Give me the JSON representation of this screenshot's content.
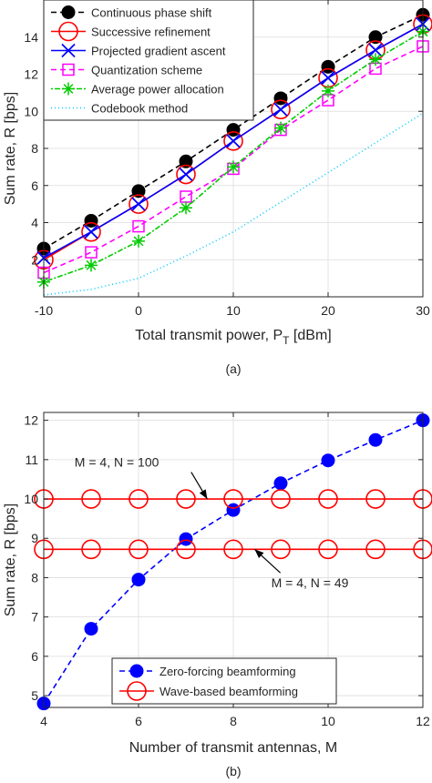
{
  "chart_data": [
    {
      "type": "line",
      "caption": "(a)",
      "xlabel": "Total transmit power, P",
      "xlabel_sub": "T",
      "xlabel_unit": "[dBm]",
      "ylabel": "Sum rate, R [bps]",
      "xlim": [
        -10,
        30
      ],
      "ylim": [
        0,
        16
      ],
      "xticks": [
        -10,
        0,
        10,
        20,
        30
      ],
      "xtick_labels": [
        "-10",
        "0",
        "10",
        "20",
        "30"
      ],
      "yticks": [
        2,
        4,
        6,
        8,
        10,
        12,
        14
      ],
      "ytick_labels": [
        "2",
        "4",
        "6",
        "8",
        "10",
        "12",
        "14"
      ],
      "grid": true,
      "legend_position": "top-left",
      "x": [
        -10,
        -5,
        0,
        5,
        10,
        15,
        20,
        25,
        30
      ],
      "series": [
        {
          "name": "Continuous phase shift",
          "color": "#000000",
          "dash": "6,4",
          "marker": "filled-circle",
          "values": [
            2.6,
            4.1,
            5.7,
            7.3,
            9.0,
            10.7,
            12.4,
            14.0,
            15.2
          ]
        },
        {
          "name": "Successive refinement",
          "color": "#ff0000",
          "dash": "",
          "marker": "open-circle",
          "values": [
            2.0,
            3.5,
            5.0,
            6.6,
            8.4,
            10.1,
            11.8,
            13.3,
            14.7
          ]
        },
        {
          "name": "Projected gradient ascent",
          "color": "#0000ff",
          "dash": "",
          "marker": "x",
          "values": [
            2.1,
            3.5,
            5.0,
            6.6,
            8.4,
            10.1,
            11.8,
            13.3,
            14.7
          ]
        },
        {
          "name": "Quantization scheme",
          "color": "#ff00ff",
          "dash": "6,4",
          "marker": "open-square",
          "values": [
            1.3,
            2.4,
            3.8,
            5.4,
            6.9,
            9.0,
            10.6,
            12.3,
            13.5
          ]
        },
        {
          "name": "Average power allocation",
          "color": "#00cc00",
          "dash": "2,2,6,2",
          "marker": "star",
          "values": [
            0.8,
            1.7,
            3.0,
            4.8,
            7.0,
            9.1,
            11.1,
            12.8,
            14.3
          ]
        },
        {
          "name": "Codebook method",
          "color": "#00ccff",
          "dash": "1,3",
          "marker": "none",
          "values": [
            0.1,
            0.4,
            1.0,
            2.2,
            3.5,
            5.1,
            6.7,
            8.3,
            9.9
          ]
        }
      ]
    },
    {
      "type": "line",
      "caption": "(b)",
      "xlabel": "Number of transmit antennas, M",
      "ylabel": "Sum rate, R [bps]",
      "xlim": [
        4,
        12
      ],
      "ylim": [
        4.7,
        12.2
      ],
      "xticks": [
        4,
        6,
        8,
        10,
        12
      ],
      "xtick_labels": [
        "4",
        "6",
        "8",
        "10",
        "12"
      ],
      "yticks": [
        5,
        6,
        7,
        8,
        9,
        10,
        11,
        12
      ],
      "ytick_labels": [
        "5",
        "6",
        "7",
        "8",
        "9",
        "10",
        "11",
        "12"
      ],
      "grid": true,
      "legend_position": "bottom-center",
      "x": [
        4,
        5,
        6,
        7,
        8,
        9,
        10,
        11,
        12
      ],
      "series": [
        {
          "name": "Zero-forcing beamforming",
          "color": "#0000ff",
          "dash": "6,4",
          "marker": "filled-circle",
          "values": [
            4.8,
            6.7,
            7.95,
            8.98,
            9.72,
            10.4,
            10.98,
            11.5,
            12.0
          ]
        },
        {
          "name": "Wave-based beamforming",
          "color": "#ff0000",
          "dash": "",
          "marker": "open-circle",
          "values": [
            10.0,
            10.0,
            10.0,
            10.0,
            10.0,
            10.0,
            10.0,
            10.0,
            10.0
          ]
        },
        {
          "name": "",
          "legend": false,
          "color": "#ff0000",
          "dash": "",
          "marker": "open-circle",
          "values": [
            8.72,
            8.72,
            8.72,
            8.72,
            8.72,
            8.72,
            8.72,
            8.72,
            8.72
          ]
        }
      ],
      "annotations": [
        {
          "text": "M = 4, N = 100",
          "label_x": 4.65,
          "label_y": 10.82,
          "arrow_to_x": 7.45,
          "arrow_to_y": 10.0,
          "anchor": "start"
        },
        {
          "text": "M = 4, N = 49",
          "label_x": 8.8,
          "label_y": 7.75,
          "arrow_to_x": 8.45,
          "arrow_to_y": 8.72,
          "anchor": "start"
        }
      ]
    }
  ]
}
